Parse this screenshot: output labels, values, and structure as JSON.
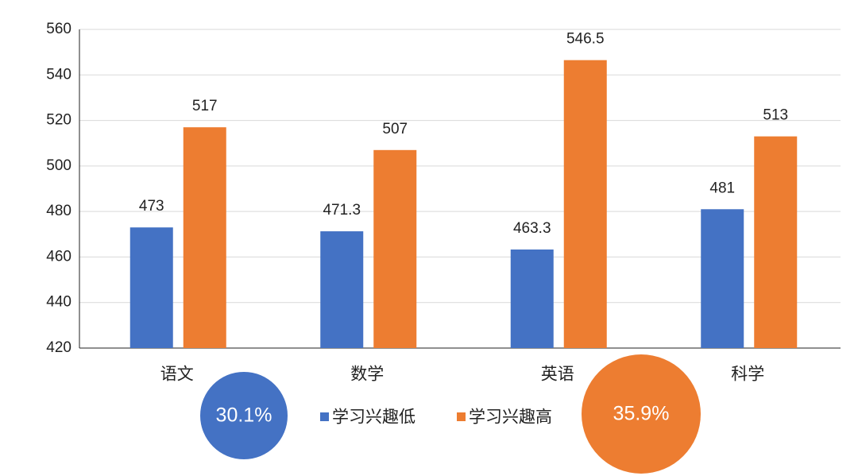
{
  "chart_data": {
    "type": "bar",
    "categories": [
      "语文",
      "数学",
      "英语",
      "科学"
    ],
    "series": [
      {
        "name": "学习兴趣低",
        "color": "#4472c4",
        "values": [
          473,
          471.3,
          463.3,
          481
        ]
      },
      {
        "name": "学习兴趣高",
        "color": "#ed7d31",
        "values": [
          517,
          507,
          546.5,
          513
        ]
      }
    ],
    "ylim": [
      420,
      560
    ],
    "yticks": [
      420,
      440,
      460,
      480,
      500,
      520,
      540,
      560
    ],
    "grid": true,
    "legend": "bottom",
    "annotations": [
      {
        "text": "30.1%",
        "color": "#4472c4"
      },
      {
        "text": "35.9%",
        "color": "#ed7d31"
      }
    ]
  }
}
